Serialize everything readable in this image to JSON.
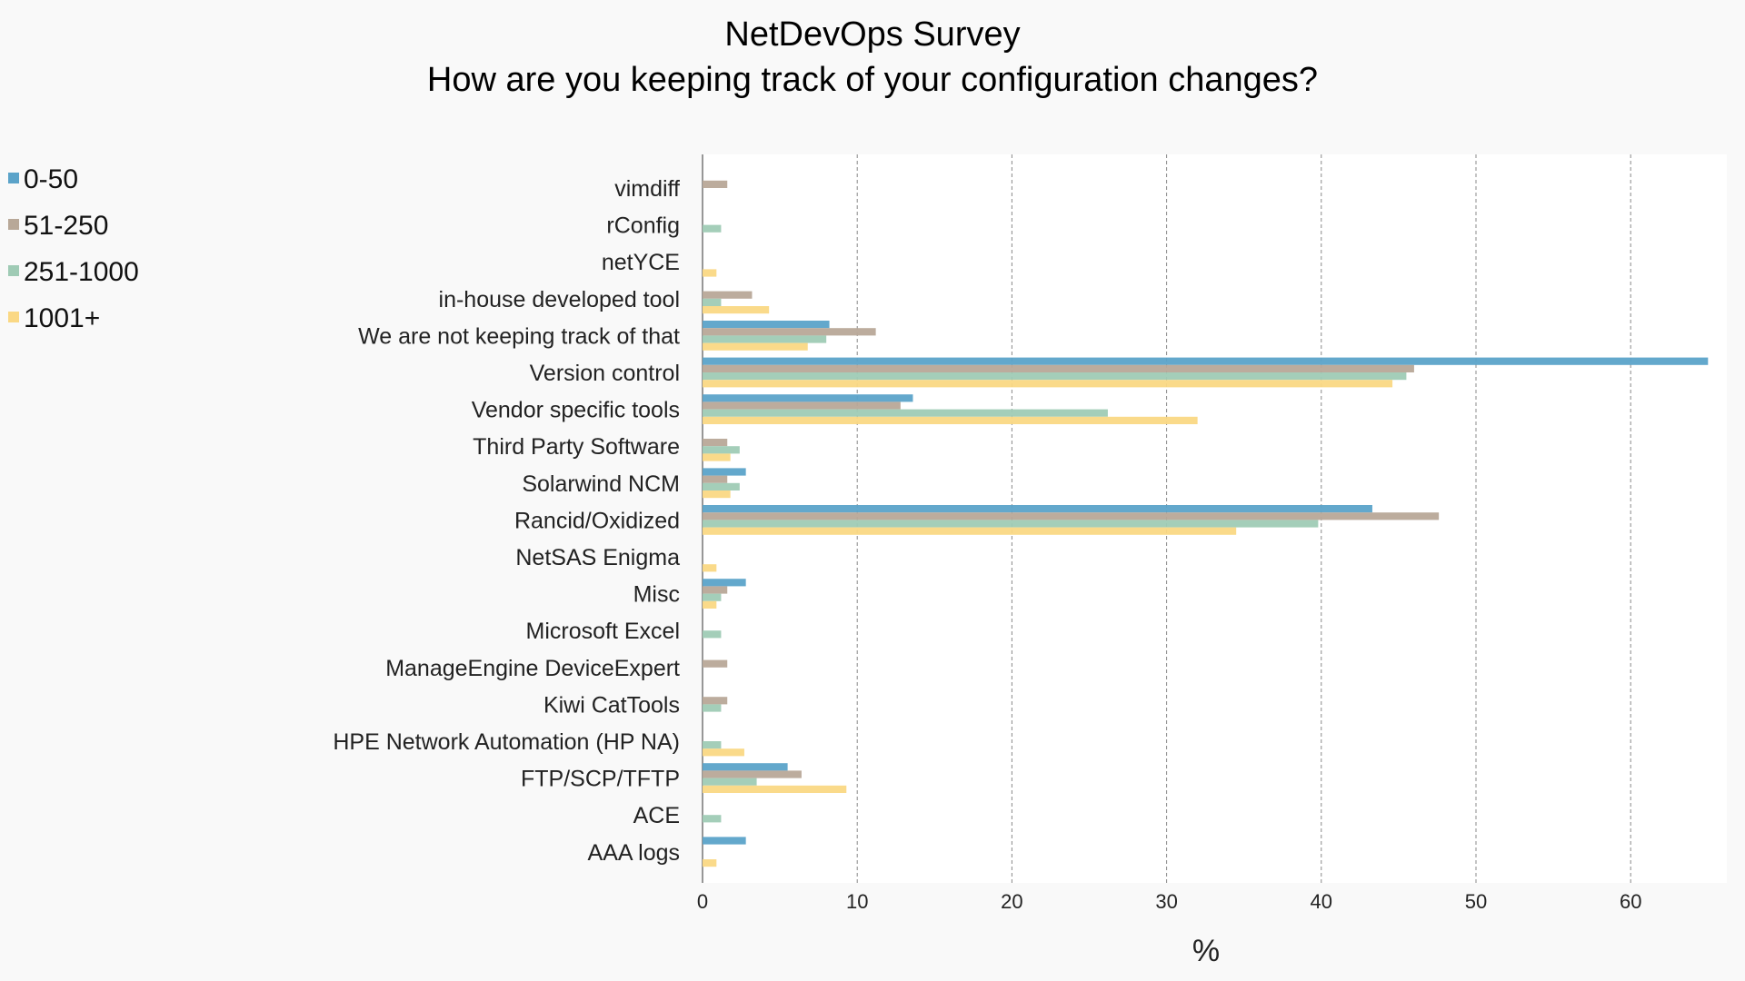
{
  "chart_data": {
    "type": "bar",
    "orientation": "horizontal",
    "title": "NetDevOps Survey",
    "subtitle": "How are you keeping track of your configuration changes?",
    "xlabel": "%",
    "ylabel": "",
    "xlim": [
      0,
      65
    ],
    "xticks": [
      "0",
      "10",
      "20",
      "30",
      "40",
      "50",
      "60"
    ],
    "grid": true,
    "legend_position": "top-left",
    "categories": [
      "vimdiff",
      "rConfig",
      "netYCE",
      "in-house developed tool",
      "We are not keeping track of that",
      "Version control",
      "Vendor specific tools",
      "Third Party Software",
      "Solarwind NCM",
      "Rancid/Oxidized",
      "NetSAS Enigma",
      "Misc",
      "Microsoft Excel",
      "ManageEngine DeviceExpert",
      "Kiwi CatTools",
      "HPE Network Automation (HP NA)",
      "FTP/SCP/TFTP",
      "ACE",
      "AAA logs"
    ],
    "series": [
      {
        "name": "0-50",
        "color": "#5ba3c9",
        "values": [
          0,
          0,
          0,
          0,
          8.2,
          65,
          13.6,
          0,
          2.8,
          43.3,
          0,
          2.8,
          0,
          0,
          0,
          0,
          5.5,
          0,
          2.8
        ]
      },
      {
        "name": "51-250",
        "color": "#b8a898",
        "values": [
          1.6,
          0,
          0,
          3.2,
          11.2,
          46.0,
          12.8,
          1.6,
          1.6,
          47.6,
          0,
          1.6,
          0,
          1.6,
          1.6,
          0,
          6.4,
          0,
          0
        ]
      },
      {
        "name": "251-1000",
        "color": "#9fcbb5",
        "values": [
          0,
          1.2,
          0,
          1.2,
          8.0,
          45.5,
          26.2,
          2.4,
          2.4,
          39.8,
          0,
          1.2,
          1.2,
          0,
          1.2,
          1.2,
          3.5,
          1.2,
          0
        ]
      },
      {
        "name": "1001+",
        "color": "#fad884",
        "values": [
          0,
          0,
          0.9,
          4.3,
          6.8,
          44.6,
          32.0,
          1.8,
          1.8,
          34.5,
          0.9,
          0.9,
          0,
          0,
          0,
          2.7,
          9.3,
          0,
          0.9
        ]
      }
    ]
  }
}
